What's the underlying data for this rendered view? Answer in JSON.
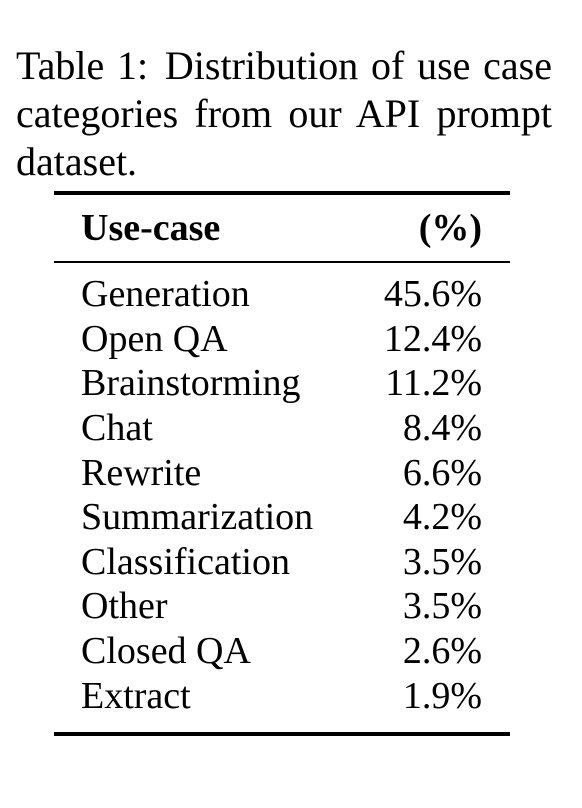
{
  "caption": {
    "label": "Table 1:",
    "text": "Distribution of use case categories from our API prompt dataset."
  },
  "table": {
    "headers": [
      "Use-case",
      "(%)"
    ],
    "rows": [
      {
        "use_case": "Generation",
        "percent": "45.6%"
      },
      {
        "use_case": "Open QA",
        "percent": "12.4%"
      },
      {
        "use_case": "Brainstorming",
        "percent": "11.2%"
      },
      {
        "use_case": "Chat",
        "percent": "8.4%"
      },
      {
        "use_case": "Rewrite",
        "percent": "6.6%"
      },
      {
        "use_case": "Summarization",
        "percent": "4.2%"
      },
      {
        "use_case": "Classification",
        "percent": "3.5%"
      },
      {
        "use_case": "Other",
        "percent": "3.5%"
      },
      {
        "use_case": "Closed QA",
        "percent": "2.6%"
      },
      {
        "use_case": "Extract",
        "percent": "1.9%"
      }
    ]
  }
}
